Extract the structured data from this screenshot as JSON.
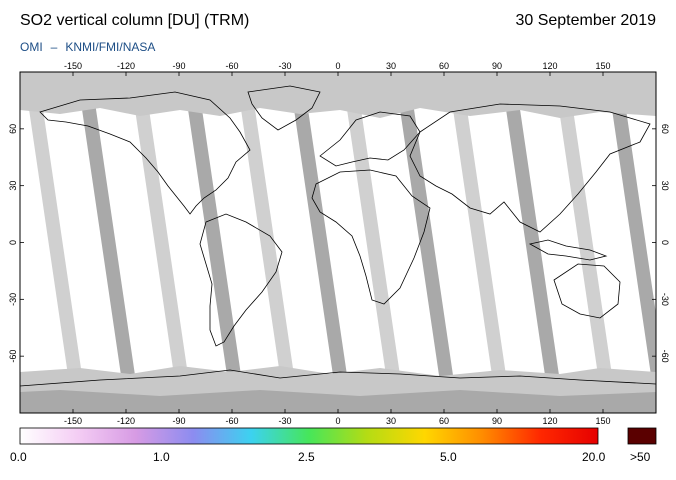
{
  "header": {
    "title": "SO2 vertical column [DU] (TRM)",
    "date": "30 September 2019",
    "credit_instrument": "OMI",
    "credit_dash": "–",
    "credit_orgs": "KNMI/FMI/NASA"
  },
  "map": {
    "lon_ticks": [
      "-150",
      "-120",
      "-90",
      "-60",
      "-30",
      "0",
      "30",
      "60",
      "90",
      "120",
      "150"
    ],
    "lat_ticks": [
      "60",
      "30",
      "0",
      "-30",
      "-60"
    ],
    "lon_range": [
      -180,
      180
    ],
    "lat_range": [
      -90,
      90
    ],
    "colors": {
      "no_data": "#c8c8c8",
      "swath_gap": "#a9a9a9",
      "background": "#ffffff",
      "coastline": "#000000"
    }
  },
  "colorbar": {
    "labels": [
      "0.0",
      "1.0",
      "2.5",
      "5.0",
      "20.0",
      ">50"
    ],
    "colors": [
      "#ffffff",
      "#f4cdf4",
      "#d79be4",
      "#8c8cf0",
      "#3cd2f0",
      "#46e65a",
      "#b4dc14",
      "#ffd700",
      "#ff8c00",
      "#ff2800",
      "#e60000"
    ],
    "overflow_color": "#5a0000"
  }
}
